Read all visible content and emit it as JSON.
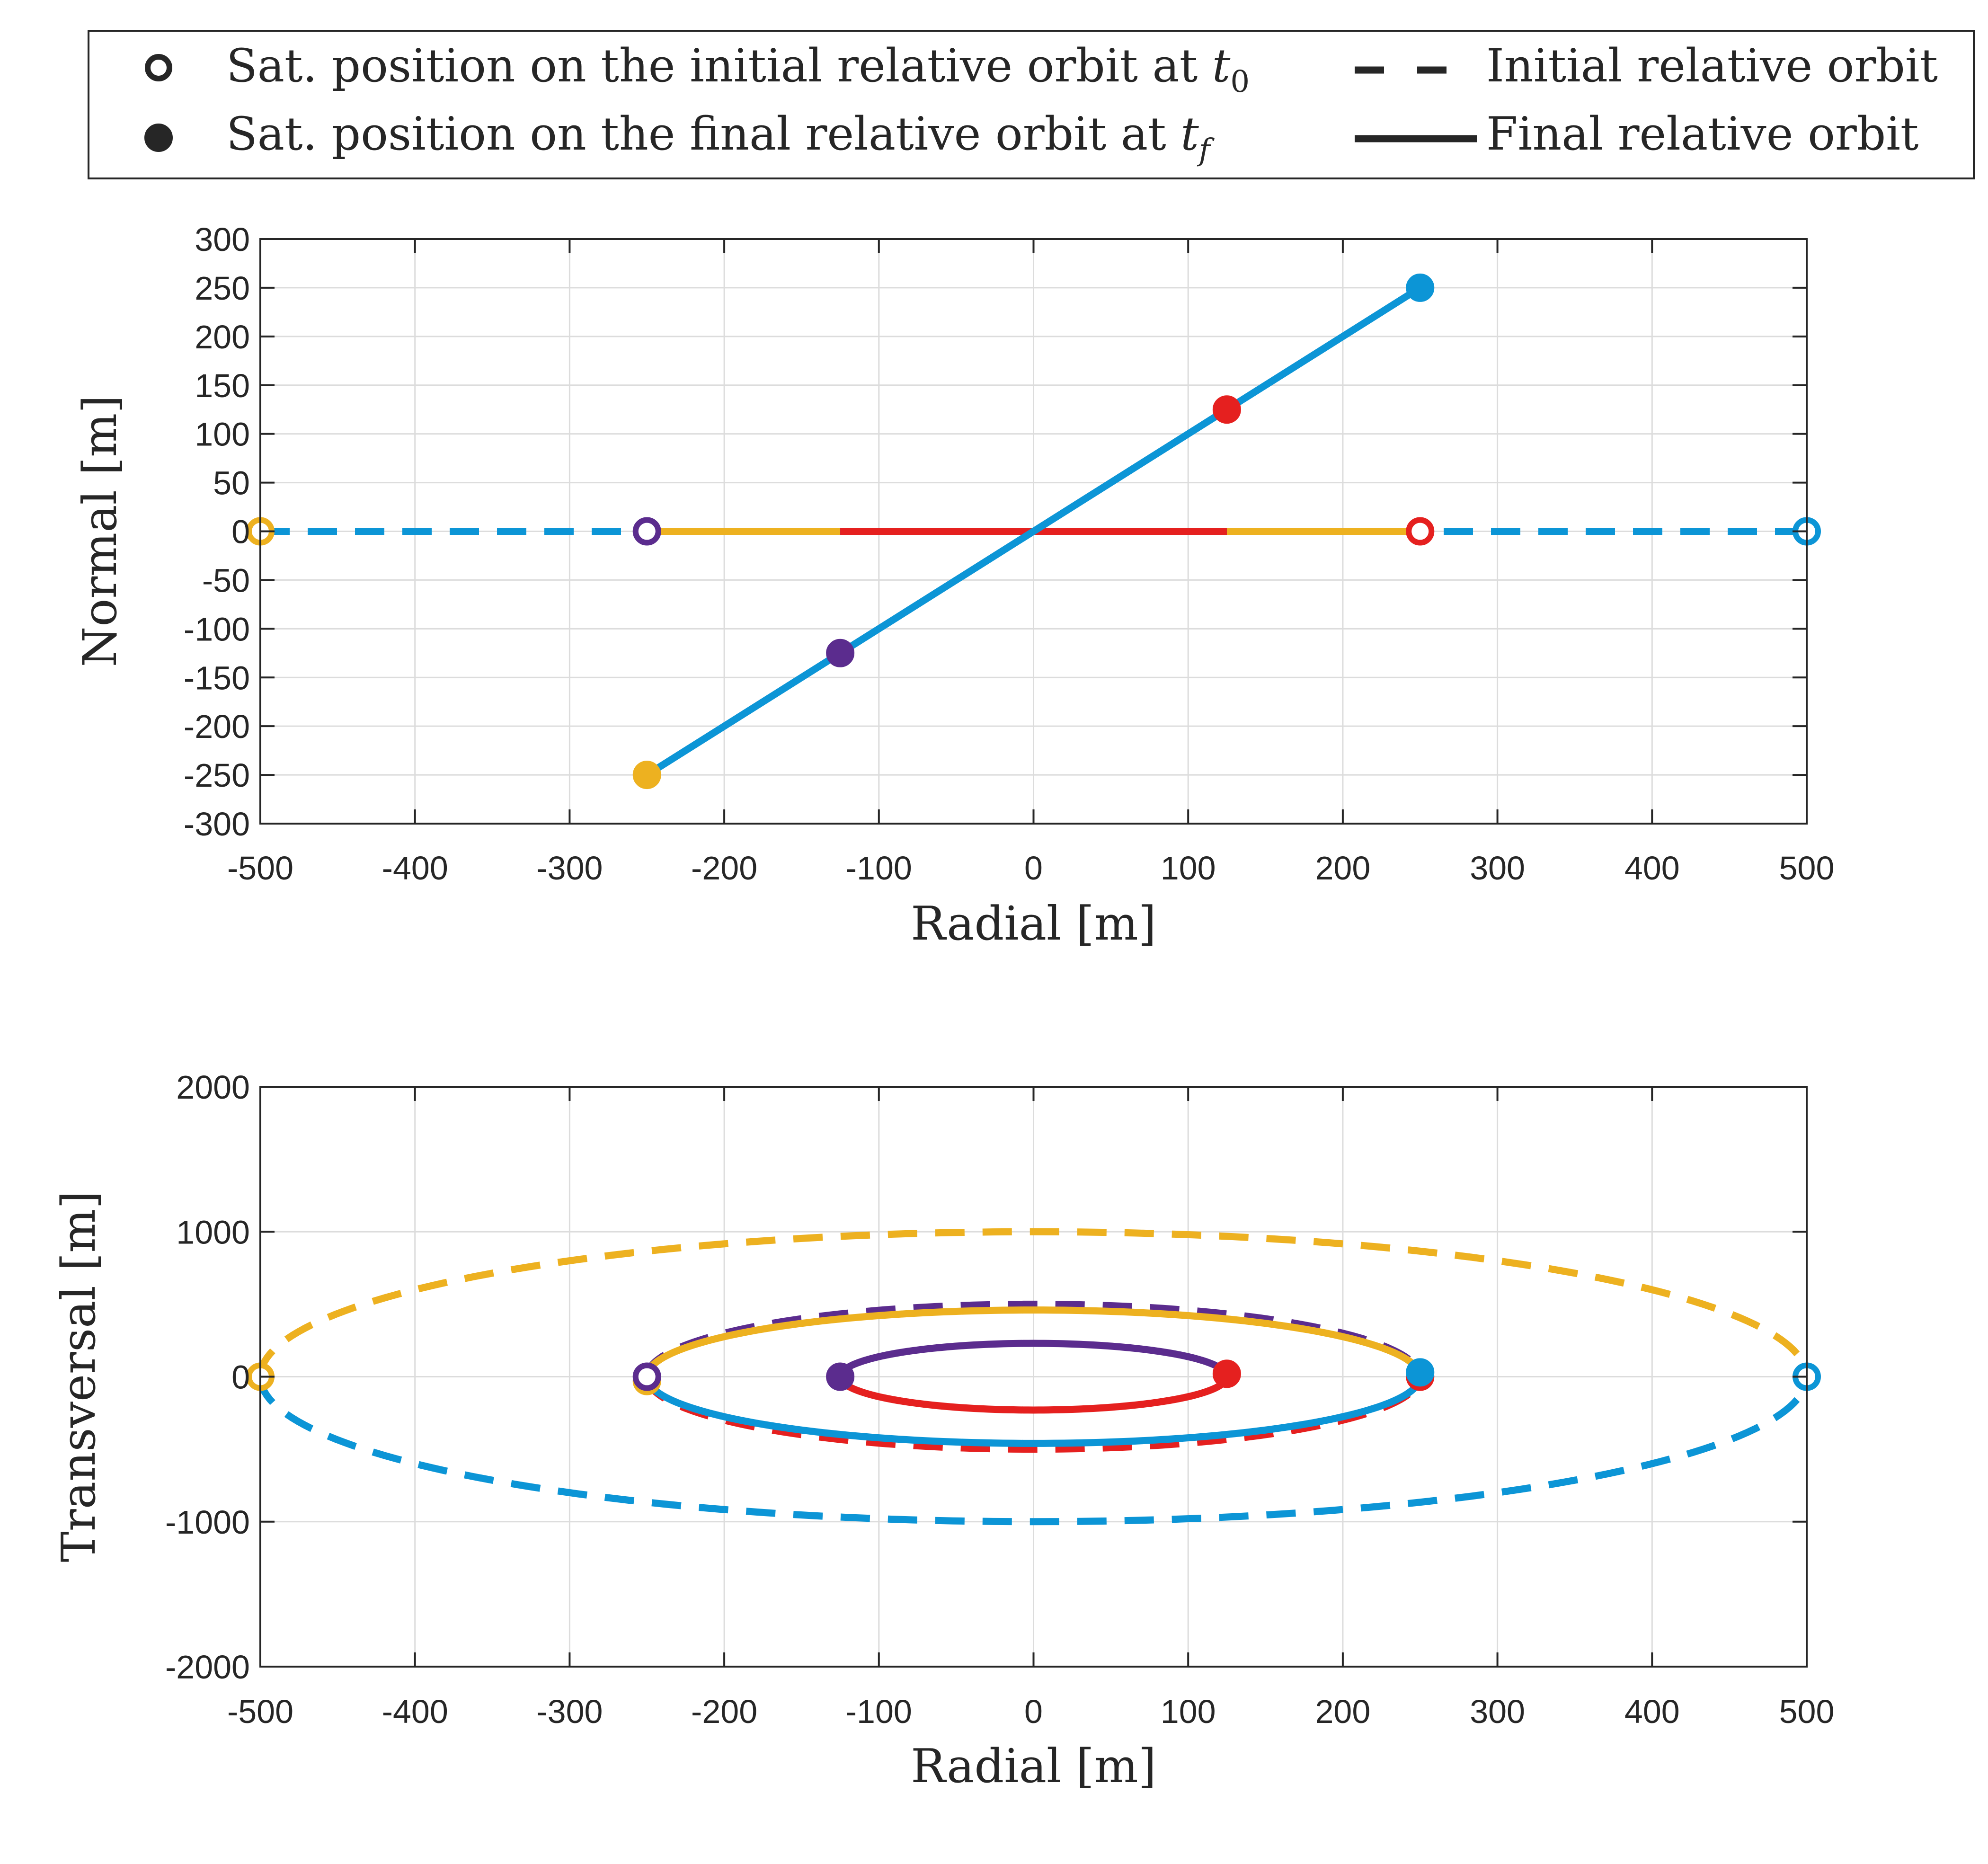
{
  "legend": {
    "entries": [
      {
        "marker": "open-circle",
        "text": "Sat. position on the initial relative orbit at ",
        "math": "t",
        "sub": "0"
      },
      {
        "marker": "filled-circle",
        "text": "Sat. position on the final relative orbit at ",
        "math": "t",
        "sub": "f"
      },
      {
        "line": "dashed",
        "text": "Initial relative orbit"
      },
      {
        "line": "solid",
        "text": "Final relative orbit"
      }
    ],
    "placement": "top"
  },
  "colors": {
    "yellow": "#EDB120",
    "purple": "#5B2C8E",
    "red": "#E5201F",
    "blue": "#0C95D6",
    "axis": "#262626",
    "grid": "#dcdcdc"
  },
  "chart_data": [
    {
      "type": "line",
      "id": "radial-normal",
      "xlabel": "Radial [m]",
      "ylabel": "Normal [m]",
      "xlim": [
        -500,
        500
      ],
      "ylim": [
        -300,
        300
      ],
      "xticks": [
        -500,
        -400,
        -300,
        -200,
        -100,
        0,
        100,
        200,
        300,
        400,
        500
      ],
      "yticks": [
        300,
        250,
        200,
        150,
        100,
        50,
        0,
        -50,
        -100,
        -150,
        -200,
        -250,
        -300
      ],
      "grid": true,
      "series": [
        {
          "name": "initial-yellow",
          "color": "yellow",
          "style": "dashed",
          "x": [
            -500,
            500
          ],
          "y": [
            0,
            0
          ]
        },
        {
          "name": "initial-blue",
          "color": "blue",
          "style": "dashed",
          "x": [
            -500,
            500
          ],
          "y": [
            0,
            0
          ]
        },
        {
          "name": "initial-purple",
          "color": "purple",
          "style": "dashed",
          "x": [
            -250,
            250
          ],
          "y": [
            0,
            0
          ]
        },
        {
          "name": "initial-red",
          "color": "red",
          "style": "dashed",
          "x": [
            -250,
            250
          ],
          "y": [
            0,
            0
          ]
        },
        {
          "name": "final-yellow",
          "color": "yellow",
          "style": "solid",
          "x": [
            -250,
            250
          ],
          "y": [
            0,
            0
          ]
        },
        {
          "name": "final-purple",
          "color": "purple",
          "style": "solid",
          "x": [
            -125,
            125
          ],
          "y": [
            0,
            0
          ]
        },
        {
          "name": "final-red",
          "color": "red",
          "style": "solid",
          "x": [
            -125,
            125
          ],
          "y": [
            0,
            0
          ]
        },
        {
          "name": "final-blue",
          "color": "blue",
          "style": "solid",
          "x": [
            -250,
            250
          ],
          "y": [
            -250,
            250
          ]
        }
      ],
      "markers": [
        {
          "name": "t0-yellow",
          "color": "yellow",
          "filled": false,
          "x": -500,
          "y": 0
        },
        {
          "name": "t0-purple",
          "color": "purple",
          "filled": false,
          "x": -250,
          "y": 0
        },
        {
          "name": "t0-red",
          "color": "red",
          "filled": false,
          "x": 250,
          "y": 0
        },
        {
          "name": "t0-blue",
          "color": "blue",
          "filled": false,
          "x": 500,
          "y": 0
        },
        {
          "name": "tf-yellow",
          "color": "yellow",
          "filled": true,
          "x": -250,
          "y": -250
        },
        {
          "name": "tf-purple",
          "color": "purple",
          "filled": true,
          "x": -125,
          "y": -125
        },
        {
          "name": "tf-red",
          "color": "red",
          "filled": true,
          "x": 125,
          "y": 125
        },
        {
          "name": "tf-blue",
          "color": "blue",
          "filled": true,
          "x": 250,
          "y": 250
        }
      ]
    },
    {
      "type": "line",
      "id": "radial-transversal",
      "xlabel": "Radial [m]",
      "ylabel": "Transversal [m]",
      "xlim": [
        -500,
        500
      ],
      "ylim": [
        -2000,
        2000
      ],
      "xticks": [
        -500,
        -400,
        -300,
        -200,
        -100,
        0,
        100,
        200,
        300,
        400,
        500
      ],
      "yticks": [
        2000,
        1000,
        0,
        -1000,
        -2000
      ],
      "grid": true,
      "series": [
        {
          "name": "initial-yellow",
          "color": "yellow",
          "style": "dashed",
          "arc": "upper",
          "a": 500,
          "b": 1000
        },
        {
          "name": "initial-blue",
          "color": "blue",
          "style": "dashed",
          "arc": "lower",
          "a": 500,
          "b": 1000
        },
        {
          "name": "initial-purple",
          "color": "purple",
          "style": "dashed",
          "arc": "upper",
          "a": 250,
          "b": 500
        },
        {
          "name": "initial-red",
          "color": "red",
          "style": "dashed",
          "arc": "lower",
          "a": 250,
          "b": 500
        },
        {
          "name": "final-yellow",
          "color": "yellow",
          "style": "solid",
          "arc": "upper",
          "a": 250,
          "b": 460
        },
        {
          "name": "final-blue",
          "color": "blue",
          "style": "solid",
          "arc": "lower",
          "a": 250,
          "b": 460
        },
        {
          "name": "final-purple",
          "color": "purple",
          "style": "solid",
          "arc": "upper",
          "a": 125,
          "b": 230
        },
        {
          "name": "final-red",
          "color": "red",
          "style": "solid",
          "arc": "lower",
          "a": 125,
          "b": 230
        }
      ],
      "markers": [
        {
          "name": "t0-yellow",
          "color": "yellow",
          "filled": false,
          "x": -500,
          "y": 0
        },
        {
          "name": "tf-yellow",
          "color": "yellow",
          "filled": true,
          "x": -250,
          "y": -30
        },
        {
          "name": "t0-purple",
          "color": "purple",
          "filled": false,
          "x": -250,
          "y": 0
        },
        {
          "name": "tf-purple",
          "color": "purple",
          "filled": true,
          "x": -125,
          "y": 0
        },
        {
          "name": "tf-red",
          "color": "red",
          "filled": true,
          "x": 125,
          "y": 20
        },
        {
          "name": "t0-red",
          "color": "red",
          "filled": false,
          "x": 250,
          "y": 0
        },
        {
          "name": "tf-blue",
          "color": "blue",
          "filled": true,
          "x": 250,
          "y": 30
        },
        {
          "name": "t0-blue",
          "color": "blue",
          "filled": false,
          "x": 500,
          "y": 0
        }
      ]
    }
  ]
}
